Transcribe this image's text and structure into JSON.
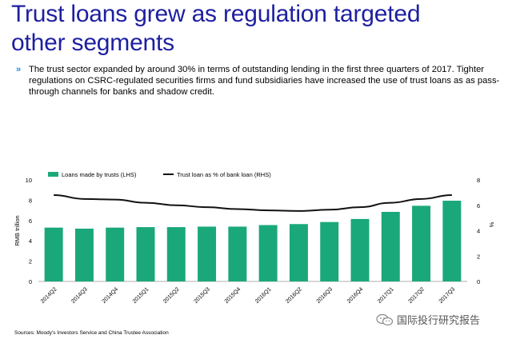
{
  "title_line1": "Trust loans grew as regulation targeted",
  "title_line2": "other segments",
  "bullet_mark": "»",
  "bullet_text": "The trust sector expanded by around 30% in terms of outstanding lending in the first three quarters of 2017. Tighter regulations on CSRC-regulated securities firms and fund subsidiaries have increased the use of trust loans as as pass-through channels for banks and shadow credit.",
  "source": "Sources: Moody's Investors Service and China Trustee Association",
  "watermark": "国际投行研究报告",
  "colors": {
    "bar": "#1aa87b",
    "line": "#111111",
    "title": "#1d1fa0",
    "bullet": "#1d8fe6"
  },
  "chart_data": {
    "type": "bar",
    "categories": [
      "2014Q2",
      "2014Q3",
      "2014Q4",
      "2015Q1",
      "2015Q2",
      "2015Q3",
      "2015Q4",
      "2016Q1",
      "2016Q2",
      "2016Q3",
      "2016Q4",
      "2017Q1",
      "2017Q2",
      "2017Q3"
    ],
    "series": [
      {
        "name": "Loans made by trusts (LHS)",
        "type": "bar",
        "axis": "left",
        "values": [
          5.3,
          5.2,
          5.3,
          5.35,
          5.35,
          5.4,
          5.4,
          5.55,
          5.65,
          5.85,
          6.15,
          6.85,
          7.45,
          7.95
        ]
      },
      {
        "name": "Trust loan as % of bank loan (RHS)",
        "type": "line",
        "axis": "right",
        "values": [
          6.8,
          6.5,
          6.45,
          6.2,
          6.0,
          5.85,
          5.7,
          5.6,
          5.55,
          5.65,
          5.85,
          6.2,
          6.5,
          6.8
        ]
      }
    ],
    "ylabel": "RMB trillion",
    "y2label": "%",
    "ylim": [
      0,
      10
    ],
    "y2lim": [
      0,
      8
    ],
    "yticks": [
      "0",
      "2",
      "4",
      "6",
      "8",
      "10"
    ],
    "y2ticks": [
      "0",
      "2",
      "4",
      "6",
      "8"
    ],
    "legend": "top",
    "grid": false
  }
}
